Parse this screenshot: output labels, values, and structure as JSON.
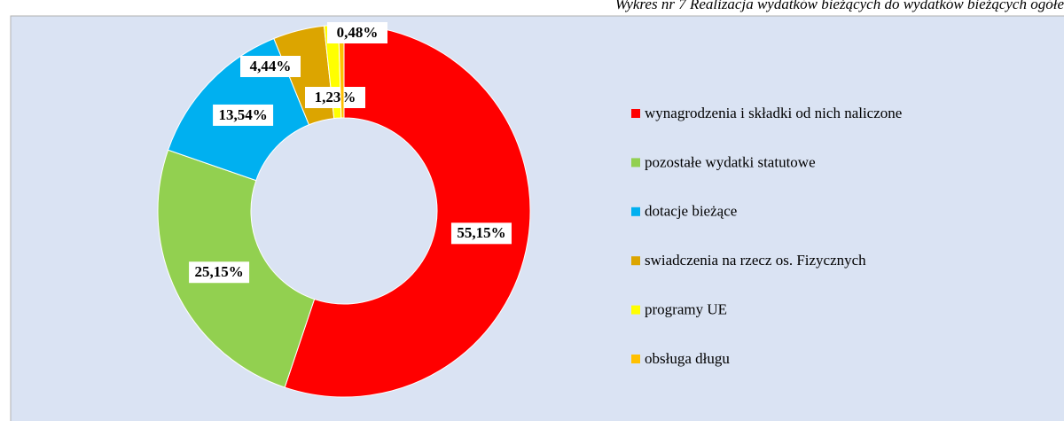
{
  "chart_data": {
    "type": "donut",
    "title": "Wykres nr 7  Realizacja wydatków bieżących do wydatków  bieżących ogółe",
    "categories": [
      "wynagrodzenia i składki od nich naliczone",
      "pozostałe wydatki statutowe",
      "dotacje bieżące",
      "swiadczenia na rzecz os. Fizycznych",
      "programy UE",
      "obsługa długu"
    ],
    "values": [
      55.15,
      25.15,
      13.54,
      4.44,
      1.23,
      0.48
    ],
    "value_labels": [
      "55,15%",
      "25,15%",
      "13,54%",
      "4,44%",
      "1,23%",
      "0,48%"
    ],
    "colors": [
      "#ff0000",
      "#92d050",
      "#00b0f0",
      "#dca500",
      "#ffff00",
      "#ffc000"
    ],
    "legend": "right"
  }
}
